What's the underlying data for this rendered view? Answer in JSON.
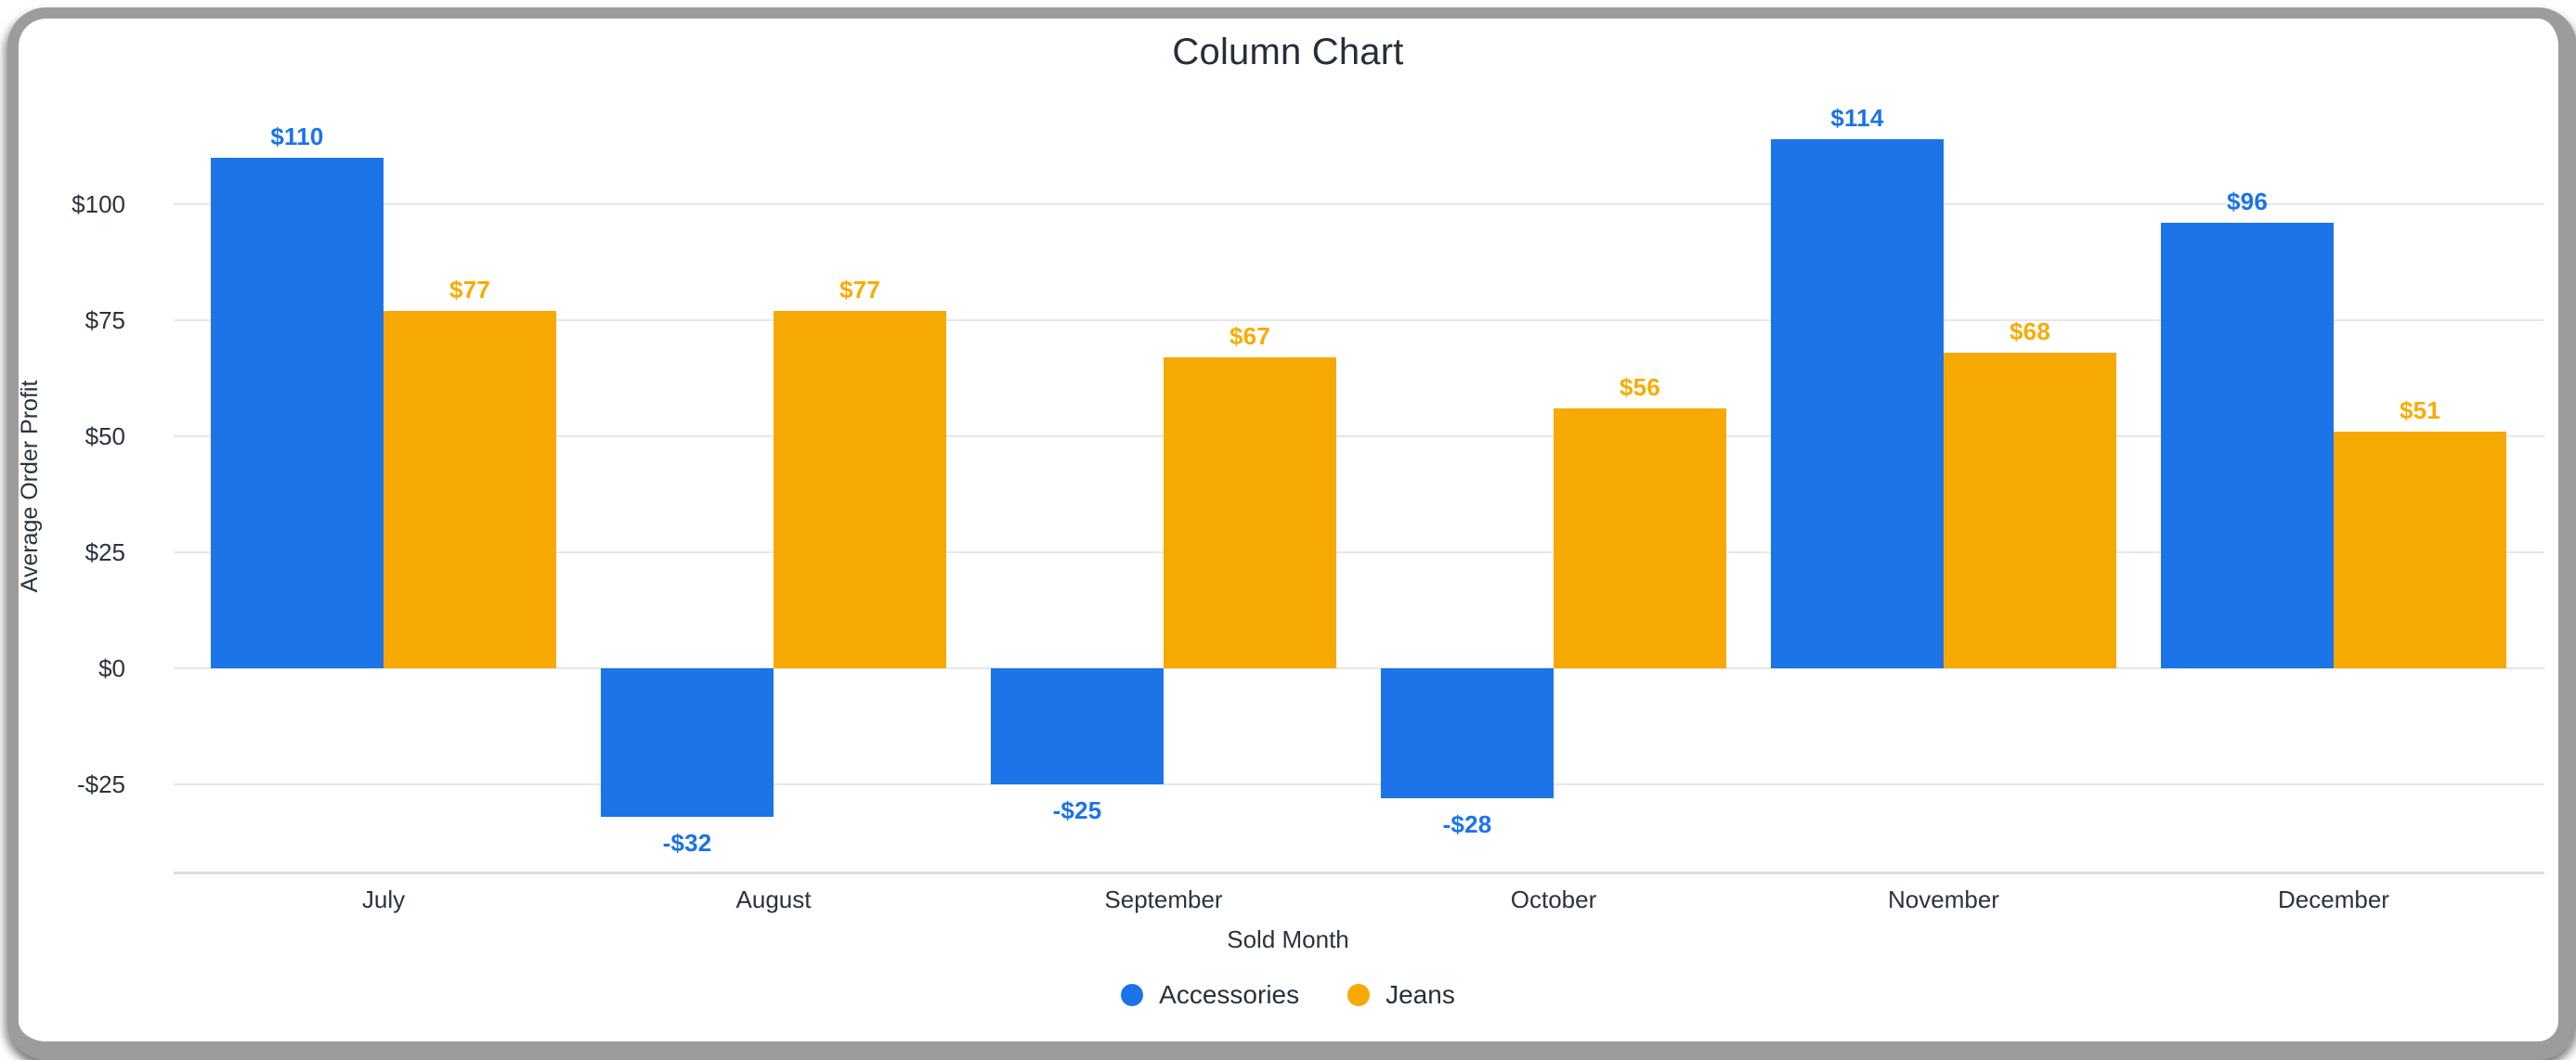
{
  "chart_data": {
    "type": "bar",
    "title": "Column Chart",
    "xlabel": "Sold Month",
    "ylabel": "Average Order Profit",
    "categories": [
      "July",
      "August",
      "September",
      "October",
      "November",
      "December"
    ],
    "series": [
      {
        "name": "Accessories",
        "color": "#1B74E8",
        "label_color": "#1A73E8",
        "values": [
          110,
          -32,
          -25,
          -28,
          114,
          96
        ],
        "labels": [
          "$110",
          "-$32",
          "-$25",
          "-$28",
          "$114",
          "$96"
        ]
      },
      {
        "name": "Jeans",
        "color": "#F7A903",
        "label_color": "#F9AB00",
        "values": [
          77,
          77,
          67,
          56,
          68,
          51
        ],
        "labels": [
          "$77",
          "$77",
          "$67",
          "$56",
          "$68",
          "$51"
        ]
      }
    ],
    "y_ticks": [
      {
        "value": 100,
        "label": "$100"
      },
      {
        "value": 75,
        "label": "$75"
      },
      {
        "value": 50,
        "label": "$50"
      },
      {
        "value": 25,
        "label": "$25"
      },
      {
        "value": 0,
        "label": "$0"
      },
      {
        "value": -25,
        "label": "-$25"
      }
    ],
    "ylim": [
      -44,
      122
    ],
    "grid": true,
    "legend_position": "bottom",
    "colors": {
      "grid": "#E7E7E7",
      "axis_line": "#D9DDE3",
      "text": "#2A333D",
      "title_text": "#262F39",
      "frame_border": "#9C9C9C"
    }
  }
}
